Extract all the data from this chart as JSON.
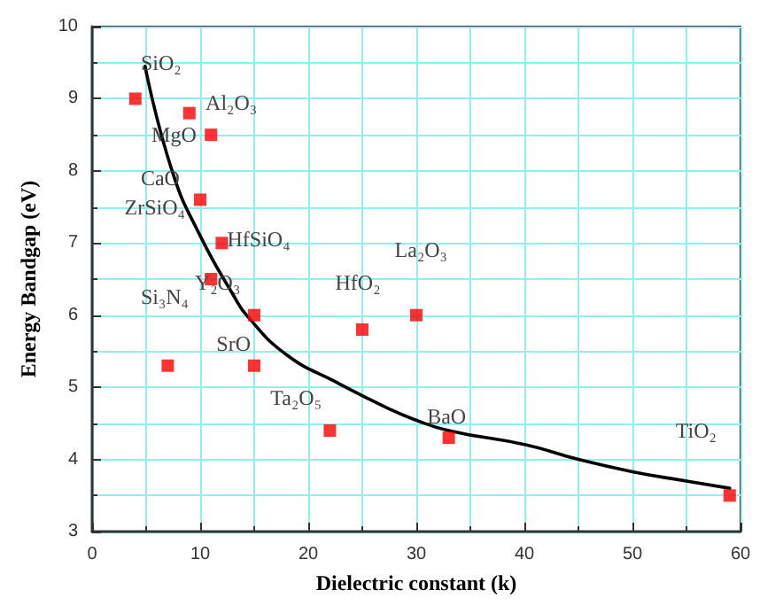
{
  "chart_data": {
    "type": "scatter",
    "xlabel": "Dielectric constant (k)",
    "ylabel": "Energy Bandgap (eV)",
    "xlim": [
      0,
      60
    ],
    "ylim": [
      3,
      10
    ],
    "xticks": [
      0,
      10,
      20,
      30,
      40,
      50,
      60
    ],
    "yticks": [
      3,
      4,
      5,
      6,
      7,
      8,
      9,
      10
    ],
    "grid": true,
    "marker": "square",
    "series": [
      {
        "color": "#ff0000",
        "x": [
          4,
          9,
          11,
          10,
          12,
          11,
          15,
          25,
          30,
          7,
          15,
          22,
          33,
          59
        ],
        "values": [
          9,
          8.8,
          8.5,
          7.6,
          7.0,
          6.5,
          6.0,
          5.8,
          6.0,
          5.3,
          5.3,
          4.4,
          4.3,
          3.5
        ]
      },
      {
        "type": "line",
        "color": "#000000",
        "marker": "none",
        "line_style": "solid",
        "x": [
          4.9,
          7.4,
          10,
          13.1,
          14.4,
          18,
          22.6,
          27.5,
          29.7,
          33,
          40.2,
          45,
          50,
          55,
          59
        ],
        "values": [
          9.45,
          8.0,
          7.1,
          6.27,
          5.98,
          5.45,
          5.07,
          4.7,
          4.56,
          4.4,
          4.2,
          4.0,
          3.83,
          3.7,
          3.6
        ]
      }
    ],
    "annotations": [
      "SiO₂",
      "Al₂O₃",
      "MgO",
      "CaO",
      "ZrSiO₄",
      "HfSiO₄",
      "Y₂O₃",
      "Si₃N₄",
      "SrO",
      "Ta₂O₅",
      "HfO₂",
      "La₂O₃",
      "BaO",
      "TiO₂"
    ]
  }
}
